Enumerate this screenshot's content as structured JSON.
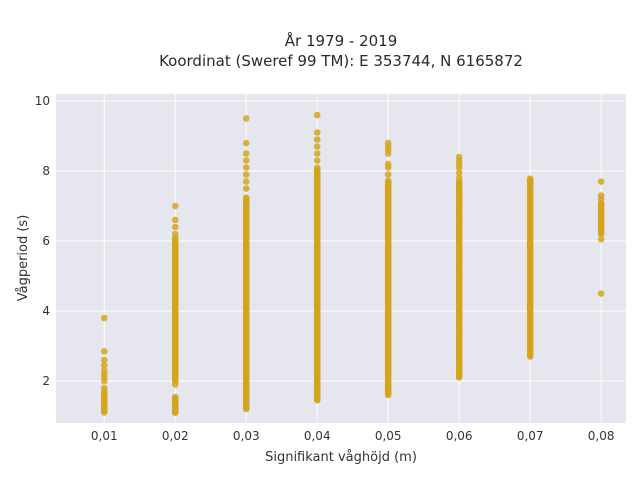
{
  "chart_data": {
    "type": "scatter",
    "title_line1": "År 1979 - 2019",
    "title_line2": "Koordinat (Sweref 99 TM): E 353744, N 6165872",
    "xlabel": "Signifikant våghöjd (m)",
    "ylabel": "Vågperiod (s)",
    "x_ticks": [
      "0,01",
      "0,02",
      "0,03",
      "0,04",
      "0,05",
      "0,06",
      "0,07",
      "0,08"
    ],
    "x_values": [
      0.01,
      0.02,
      0.03,
      0.04,
      0.05,
      0.06,
      0.07,
      0.08
    ],
    "y_ticks": [
      "2",
      "4",
      "6",
      "8",
      "10"
    ],
    "y_tick_values": [
      2,
      4,
      6,
      8,
      10
    ],
    "xlim": [
      0.0032,
      0.0835
    ],
    "ylim": [
      0.8,
      10.2
    ],
    "grid": true,
    "marker_color": "#d4a41c",
    "background_color": "#e6e6ef",
    "columns": [
      {
        "x": 0.01,
        "dense": [
          [
            1.15,
            1.65
          ]
        ],
        "points": [
          1.1,
          1.2,
          1.3,
          1.4,
          1.5,
          1.6,
          1.7,
          1.8,
          2.0,
          2.1,
          2.2,
          2.3,
          2.45,
          2.6,
          2.85,
          3.8
        ]
      },
      {
        "x": 0.02,
        "dense": [
          [
            1.1,
            1.55
          ],
          [
            2.0,
            6.1
          ]
        ],
        "points": [
          1.1,
          1.2,
          1.3,
          1.4,
          1.5,
          1.9,
          6.2,
          6.4,
          6.6,
          7.0
        ]
      },
      {
        "x": 0.03,
        "dense": [
          [
            1.2,
            7.25
          ]
        ],
        "points": [
          7.5,
          7.7,
          7.9,
          8.1,
          8.3,
          8.5,
          8.8,
          9.5
        ]
      },
      {
        "x": 0.04,
        "dense": [
          [
            1.45,
            8.1
          ]
        ],
        "points": [
          8.3,
          8.5,
          8.7,
          8.9,
          9.1,
          9.6
        ]
      },
      {
        "x": 0.05,
        "dense": [
          [
            1.6,
            7.75
          ]
        ],
        "points": [
          7.9,
          8.1,
          8.2,
          8.5,
          8.6,
          8.7,
          8.8
        ]
      },
      {
        "x": 0.06,
        "dense": [
          [
            2.1,
            7.7
          ]
        ],
        "points": [
          7.8,
          7.95,
          8.1,
          8.2,
          8.3,
          8.4
        ]
      },
      {
        "x": 0.07,
        "dense": [
          [
            2.7,
            7.8
          ]
        ],
        "points": []
      },
      {
        "x": 0.08,
        "dense": [
          [
            6.2,
            7.1
          ]
        ],
        "points": [
          6.05,
          7.2,
          7.3,
          7.7,
          4.5
        ]
      }
    ]
  }
}
